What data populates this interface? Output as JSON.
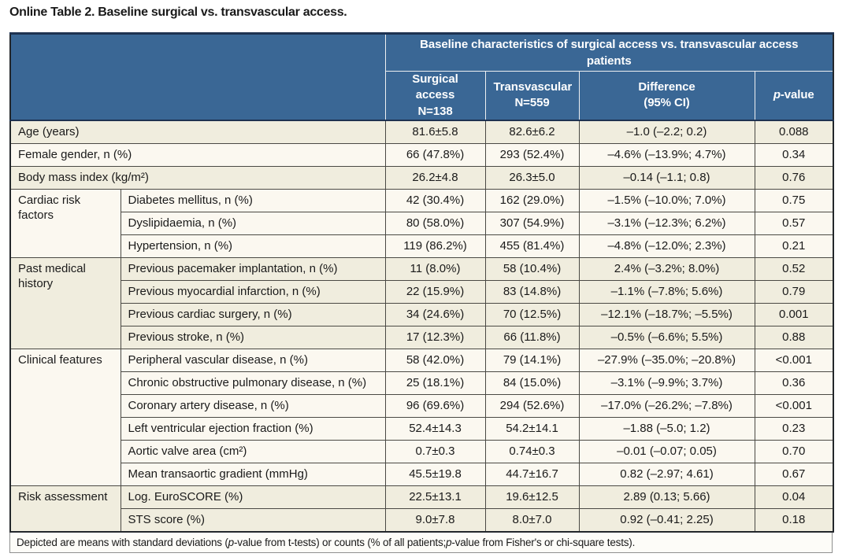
{
  "title": "Online Table 2. Baseline surgical vs. transvascular access.",
  "colors": {
    "header_blue": "#3a6795",
    "row_beige": "#f0edde",
    "row_cream": "#fbf8f0",
    "border_dark": "#4a4944",
    "header_navy": "#1e3251",
    "footer_border_gray": "#8f8f8f",
    "text": "#1a1a1a"
  },
  "table": {
    "header": {
      "span_title": "Baseline characteristics of surgical access vs. transvascular access patients",
      "columns": [
        {
          "line1": "Surgical access",
          "line2": "N=138"
        },
        {
          "line1": "Transvascular",
          "line2": "N=559"
        },
        {
          "line1": "Difference",
          "line2": "(95% CI)"
        },
        {
          "italic": "p",
          "rest": "-value"
        }
      ]
    },
    "sections": [
      {
        "label": null,
        "shade": "beige",
        "rows": [
          {
            "name": "Age (years)",
            "surgical": "81.6±5.8",
            "transvascular": "82.6±6.2",
            "difference": "–1.0 (–2.2; 0.2)",
            "p": "0.088"
          }
        ]
      },
      {
        "label": null,
        "shade": "cream",
        "rows": [
          {
            "name": "Female gender, n (%)",
            "surgical": "66 (47.8%)",
            "transvascular": "293 (52.4%)",
            "difference": "–4.6% (–13.9%; 4.7%)",
            "p": "0.34"
          }
        ]
      },
      {
        "label": null,
        "shade": "beige",
        "rows": [
          {
            "name": "Body mass index (kg/m²)",
            "surgical": "26.2±4.8",
            "transvascular": "26.3±5.0",
            "difference": "–0.14 (–1.1; 0.8)",
            "p": "0.76"
          }
        ]
      },
      {
        "label": "Cardiac risk factors",
        "shade": "cream",
        "rows": [
          {
            "name": "Diabetes mellitus, n (%)",
            "surgical": "42 (30.4%)",
            "transvascular": "162 (29.0%)",
            "difference": "–1.5% (–10.0%; 7.0%)",
            "p": "0.75"
          },
          {
            "name": "Dyslipidaemia, n (%)",
            "surgical": "80 (58.0%)",
            "transvascular": "307 (54.9%)",
            "difference": "–3.1% (–12.3%; 6.2%)",
            "p": "0.57"
          },
          {
            "name": "Hypertension, n (%)",
            "surgical": "119 (86.2%)",
            "transvascular": "455 (81.4%)",
            "difference": "–4.8% (–12.0%; 2.3%)",
            "p": "0.21"
          }
        ]
      },
      {
        "label": "Past medical history",
        "shade": "beige",
        "rows": [
          {
            "name": "Previous pacemaker implantation, n (%)",
            "surgical": "11 (8.0%)",
            "transvascular": "58 (10.4%)",
            "difference": "2.4% (–3.2%; 8.0%)",
            "p": "0.52"
          },
          {
            "name": "Previous myocardial infarction, n (%)",
            "surgical": "22 (15.9%)",
            "transvascular": "83 (14.8%)",
            "difference": "–1.1% (–7.8%; 5.6%)",
            "p": "0.79"
          },
          {
            "name": "Previous cardiac surgery, n (%)",
            "surgical": "34 (24.6%)",
            "transvascular": "70 (12.5%)",
            "difference": "–12.1% (–18.7%; –5.5%)",
            "p": "0.001"
          },
          {
            "name": "Previous stroke, n (%)",
            "surgical": "17 (12.3%)",
            "transvascular": "66 (11.8%)",
            "difference": "–0.5% (–6.6%; 5.5%)",
            "p": "0.88"
          }
        ]
      },
      {
        "label": "Clinical features",
        "shade": "cream",
        "rows": [
          {
            "name": "Peripheral vascular disease, n (%)",
            "surgical": "58 (42.0%)",
            "transvascular": "79 (14.1%)",
            "difference": "–27.9% (–35.0%; –20.8%)",
            "p": "<0.001"
          },
          {
            "name": "Chronic obstructive pulmonary disease, n (%)",
            "surgical": "25 (18.1%)",
            "transvascular": "84 (15.0%)",
            "difference": "–3.1% (–9.9%; 3.7%)",
            "p": "0.36"
          },
          {
            "name": "Coronary artery disease, n (%)",
            "surgical": "96 (69.6%)",
            "transvascular": "294 (52.6%)",
            "difference": "–17.0% (–26.2%; –7.8%)",
            "p": "<0.001"
          },
          {
            "name": "Left ventricular ejection fraction (%)",
            "surgical": "52.4±14.3",
            "transvascular": "54.2±14.1",
            "difference": "–1.88 (–5.0; 1.2)",
            "p": "0.23"
          },
          {
            "name": "Aortic valve area (cm²)",
            "surgical": "0.7±0.3",
            "transvascular": "0.74±0.3",
            "difference": "–0.01 (–0.07; 0.05)",
            "p": "0.70"
          },
          {
            "name": "Mean transaortic gradient (mmHg)",
            "surgical": "45.5±19.8",
            "transvascular": "44.7±16.7",
            "difference": "0.82 (–2.97; 4.61)",
            "p": "0.67"
          }
        ]
      },
      {
        "label": "Risk assessment",
        "shade": "beige",
        "rows": [
          {
            "name": "Log. EuroSCORE (%)",
            "surgical": "22.5±13.1",
            "transvascular": "19.6±12.5",
            "difference": "2.89 (0.13; 5.66)",
            "p": "0.04"
          },
          {
            "name": "STS score (%)",
            "surgical": "9.0±7.8",
            "transvascular": "8.0±7.0",
            "difference": "0.92 (–0.41; 2.25)",
            "p": "0.18"
          }
        ]
      }
    ],
    "footnote_segments": [
      {
        "text": "Depicted are means with standard deviations (",
        "italic": false
      },
      {
        "text": "p",
        "italic": true
      },
      {
        "text": "-value from t-tests) or counts (% of all patients; ",
        "italic": false
      },
      {
        "text": "p",
        "italic": true
      },
      {
        "text": "-value from Fisher's or chi-square tests).",
        "italic": false
      }
    ]
  }
}
